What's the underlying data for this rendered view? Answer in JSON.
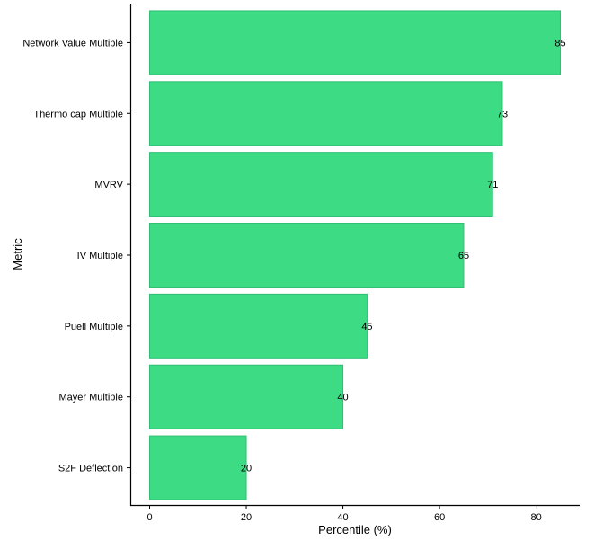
{
  "chart_data": {
    "type": "bar",
    "orientation": "horizontal",
    "categories": [
      "Network Value Multiple",
      "Thermo cap Multiple",
      "MVRV",
      "IV Multiple",
      "Puell Multiple",
      "Mayer Multiple",
      "S2F Deflection"
    ],
    "values": [
      85,
      73,
      71,
      65,
      45,
      40,
      20
    ],
    "data_labels": [
      "85",
      "73",
      "71",
      "65",
      "45",
      "40",
      "20"
    ],
    "xlabel": "Percentile (%)",
    "ylabel": "Metric",
    "xlim": [
      -4,
      89
    ],
    "xticks": [
      0,
      20,
      40,
      60,
      80
    ],
    "xtick_labels": [
      "0",
      "20",
      "40",
      "60",
      "80"
    ],
    "grid": false,
    "colors": {
      "bar_fill": "#3ddc84",
      "bar_edge": "#2fbf73",
      "axis": "#000000",
      "text": "#000000",
      "background": "#ffffff"
    }
  }
}
